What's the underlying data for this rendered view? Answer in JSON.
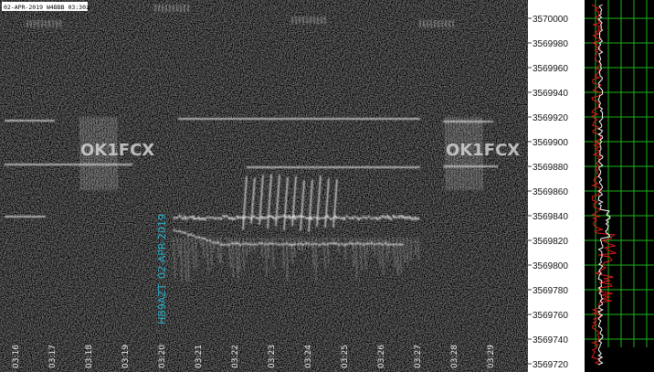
{
  "header": {
    "label": "02-APR-2019 W4BBB 03:30z"
  },
  "watermark": {
    "call": "HB9AZT",
    "date": "02-APR-2019"
  },
  "signal_text": "OK1FCX",
  "time_axis": [
    "03:16",
    "03:17",
    "03:18",
    "03:19",
    "03:20",
    "03:21",
    "03:22",
    "03:23",
    "03:24",
    "03:25",
    "03:26",
    "03:27",
    "03:28",
    "03:29"
  ],
  "frequency_axis": [
    3570000,
    3569980,
    3569960,
    3569940,
    3569920,
    3569900,
    3569880,
    3569860,
    3569840,
    3569820,
    3569800,
    3569780,
    3569760,
    3569740,
    3569720
  ]
}
